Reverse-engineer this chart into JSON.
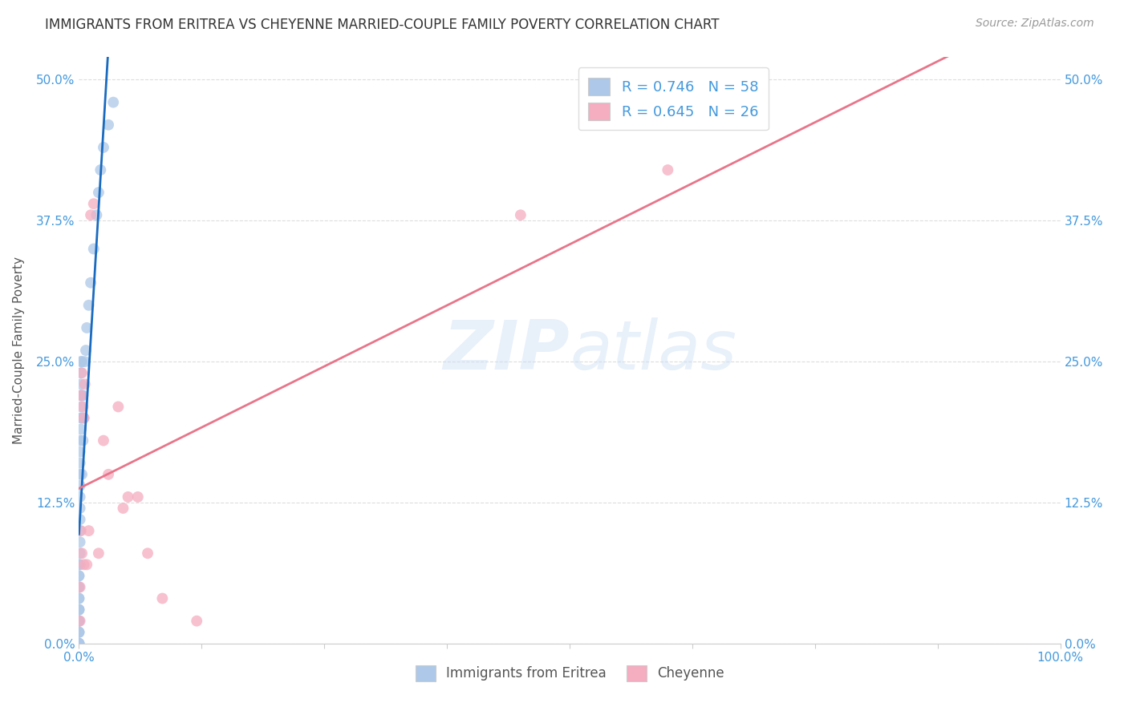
{
  "title": "IMMIGRANTS FROM ERITREA VS CHEYENNE MARRIED-COUPLE FAMILY POVERTY CORRELATION CHART",
  "source": "Source: ZipAtlas.com",
  "ylabel": "Married-Couple Family Poverty",
  "blue_label": "Immigrants from Eritrea",
  "pink_label": "Cheyenne",
  "blue_R": 0.746,
  "blue_N": 58,
  "pink_R": 0.645,
  "pink_N": 26,
  "blue_color": "#adc8e8",
  "pink_color": "#f5adc0",
  "blue_line_color": "#1a6bbf",
  "pink_line_color": "#e8758a",
  "legend_text_color": "#4499dd",
  "blue_x": [
    0.0,
    0.0,
    0.0,
    0.0,
    0.0,
    0.0,
    0.0,
    0.0,
    0.0,
    0.0,
    0.0,
    0.0,
    0.0,
    0.0,
    0.0,
    0.0,
    0.0,
    0.0,
    0.0,
    0.0,
    0.001,
    0.001,
    0.001,
    0.001,
    0.001,
    0.001,
    0.001,
    0.001,
    0.001,
    0.001,
    0.001,
    0.001,
    0.002,
    0.002,
    0.002,
    0.002,
    0.002,
    0.002,
    0.002,
    0.003,
    0.003,
    0.003,
    0.003,
    0.004,
    0.004,
    0.005,
    0.006,
    0.007,
    0.008,
    0.01,
    0.012,
    0.015,
    0.018,
    0.02,
    0.022,
    0.025,
    0.03,
    0.035
  ],
  "blue_y": [
    0.0,
    0.0,
    0.0,
    0.0,
    0.01,
    0.01,
    0.01,
    0.02,
    0.02,
    0.02,
    0.03,
    0.03,
    0.03,
    0.04,
    0.04,
    0.05,
    0.05,
    0.06,
    0.06,
    0.07,
    0.07,
    0.08,
    0.09,
    0.1,
    0.11,
    0.12,
    0.13,
    0.14,
    0.15,
    0.16,
    0.17,
    0.18,
    0.19,
    0.2,
    0.21,
    0.22,
    0.23,
    0.24,
    0.25,
    0.15,
    0.2,
    0.22,
    0.25,
    0.18,
    0.22,
    0.2,
    0.25,
    0.26,
    0.28,
    0.3,
    0.32,
    0.35,
    0.38,
    0.4,
    0.42,
    0.44,
    0.46,
    0.48
  ],
  "pink_x": [
    0.001,
    0.001,
    0.002,
    0.002,
    0.003,
    0.003,
    0.004,
    0.005,
    0.005,
    0.006,
    0.008,
    0.01,
    0.012,
    0.015,
    0.02,
    0.025,
    0.03,
    0.04,
    0.045,
    0.05,
    0.06,
    0.07,
    0.085,
    0.12,
    0.45,
    0.6
  ],
  "pink_y": [
    0.02,
    0.05,
    0.1,
    0.22,
    0.08,
    0.24,
    0.21,
    0.2,
    0.07,
    0.23,
    0.07,
    0.1,
    0.38,
    0.39,
    0.08,
    0.18,
    0.15,
    0.21,
    0.12,
    0.13,
    0.13,
    0.08,
    0.04,
    0.02,
    0.38,
    0.42
  ],
  "xlim": [
    0.0,
    1.0
  ],
  "ylim": [
    0.0,
    0.52
  ],
  "xticks": [
    0.0,
    0.125,
    0.25,
    0.375,
    0.5,
    0.625,
    0.75,
    0.875,
    1.0
  ],
  "xtick_labels": [
    "0.0%",
    "",
    "",
    "",
    "",
    "",
    "",
    "",
    "100.0%"
  ],
  "yticks": [
    0.0,
    0.125,
    0.25,
    0.375,
    0.5
  ],
  "ytick_labels": [
    "0.0%",
    "12.5%",
    "25.0%",
    "37.5%",
    "50.0%"
  ],
  "watermark_zip": "ZIP",
  "watermark_atlas": "atlas",
  "background_color": "#ffffff",
  "grid_color": "#dddddd"
}
